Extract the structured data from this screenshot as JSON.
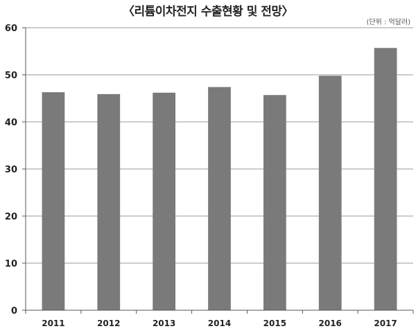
{
  "chart_data": {
    "type": "bar",
    "title": "〈리튬이차전지 수출현황 및 전망〉",
    "unit_note": "(단위 : 억달러)",
    "categories": [
      "2011",
      "2012",
      "2013",
      "2014",
      "2015",
      "2016",
      "2017"
    ],
    "values": [
      46.3,
      45.9,
      46.2,
      47.4,
      45.7,
      49.8,
      55.7
    ],
    "xlabel": "",
    "ylabel": "",
    "ylim": [
      0,
      60
    ],
    "yticks": [
      0,
      10,
      20,
      30,
      40,
      50,
      60
    ],
    "grid": true,
    "legend": "none",
    "bar_color": "#7a7a7a",
    "grid_color": "#9a9a9a"
  }
}
